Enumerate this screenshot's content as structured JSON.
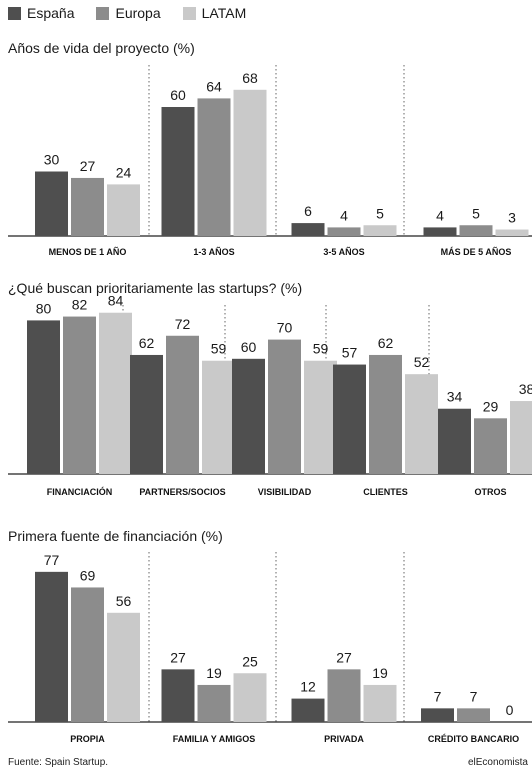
{
  "legend": {
    "series": [
      {
        "name": "España",
        "color": "#4f4f4f"
      },
      {
        "name": "Europa",
        "color": "#8c8c8c"
      },
      {
        "name": "LATAM",
        "color": "#c9c9c9"
      }
    ]
  },
  "chart_data": [
    {
      "type": "bar",
      "title": "Años de vida del proyecto (%)",
      "categories": [
        "MENOS DE 1 AÑO",
        "1-3 AÑOS",
        "3-5 AÑOS",
        "MÁS DE 5 AÑOS"
      ],
      "series": [
        {
          "name": "España",
          "values": [
            30,
            60,
            6,
            4
          ]
        },
        {
          "name": "Europa",
          "values": [
            27,
            64,
            4,
            5
          ]
        },
        {
          "name": "LATAM",
          "values": [
            24,
            68,
            5,
            3
          ]
        }
      ],
      "ylim": [
        0,
        100
      ]
    },
    {
      "type": "bar",
      "title": "¿Qué buscan prioritariamente las startups? (%)",
      "categories": [
        "FINANCIACIÓN",
        "PARTNERS/SOCIOS",
        "VISIBILIDAD",
        "CLIENTES",
        "OTROS"
      ],
      "series": [
        {
          "name": "España",
          "values": [
            80,
            62,
            60,
            57,
            34
          ]
        },
        {
          "name": "Europa",
          "values": [
            82,
            72,
            70,
            62,
            29
          ]
        },
        {
          "name": "LATAM",
          "values": [
            84,
            59,
            59,
            52,
            38
          ]
        }
      ],
      "ylim": [
        0,
        100
      ]
    },
    {
      "type": "bar",
      "title": "Primera fuente de financiación (%)",
      "categories": [
        "PROPIA",
        "FAMILIA Y AMIGOS",
        "PRIVADA",
        "CRÉDITO BANCARIO"
      ],
      "series": [
        {
          "name": "España",
          "values": [
            77,
            27,
            12,
            7
          ]
        },
        {
          "name": "Europa",
          "values": [
            69,
            19,
            27,
            7
          ]
        },
        {
          "name": "LATAM",
          "values": [
            56,
            25,
            19,
            0
          ]
        }
      ],
      "ylim": [
        0,
        100
      ]
    }
  ],
  "footer": {
    "source": "Fuente: Spain Startup.",
    "brand": "elEconomista"
  }
}
